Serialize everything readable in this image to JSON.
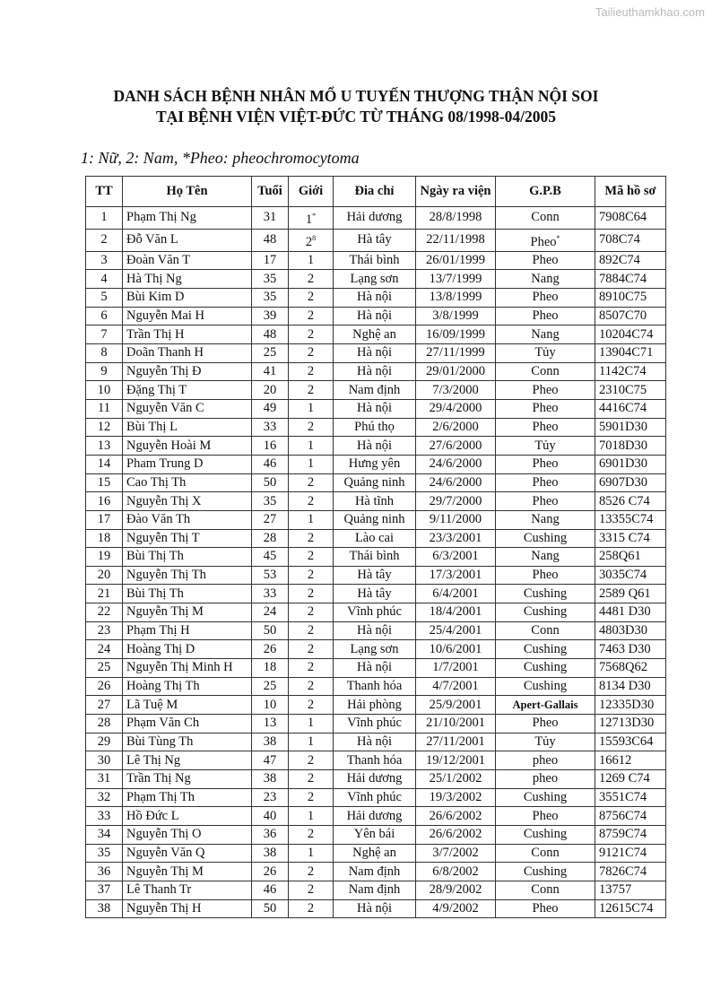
{
  "watermark": "Tailieuthamkhao.com",
  "title_line1": "DANH SÁCH BỆNH NHÂN MỔ U TUYẾN THƯỢNG THẬN NỘI SOI",
  "title_line2": "TẠI BỆNH VIỆN VIỆT-ĐỨC TỪ THÁNG 08/1998-04/2005",
  "legend": "1: Nữ, 2: Nam, *Pheo: pheochromocytoma",
  "headers": [
    "TT",
    "Họ Tên",
    "Tuổi",
    "Giới",
    "Đia chỉ",
    "Ngày ra viện",
    "G.P.B",
    "Mã hồ sơ"
  ],
  "rows": [
    [
      "1",
      "Phạm Thị Ng",
      "31",
      "1",
      "Hải dương",
      "28/8/1998",
      "Conn",
      "7908C64"
    ],
    [
      "2",
      "Đỗ Văn L",
      "48",
      "2",
      "Hà tây",
      "22/11/1998",
      "Pheo",
      "708C74"
    ],
    [
      "3",
      "Đoàn Văn T",
      "17",
      "1",
      "Thái bình",
      "26/01/1999",
      "Pheo",
      "892C74"
    ],
    [
      "4",
      "Hà Thị Ng",
      "35",
      "2",
      "Lạng sơn",
      "13/7/1999",
      "Nang",
      "7884C74"
    ],
    [
      "5",
      "Bùi Kim D",
      "35",
      "2",
      "Hà nội",
      "13/8/1999",
      "Pheo",
      "8910C75"
    ],
    [
      "6",
      "Nguyễn Mai H",
      "39",
      "2",
      "Hà nội",
      "3/8/1999",
      "Pheo",
      "8507C70"
    ],
    [
      "7",
      "Trần Thị H",
      "48",
      "2",
      "Nghệ an",
      "16/09/1999",
      "Nang",
      "10204C74"
    ],
    [
      "8",
      "Doãn Thanh H",
      "25",
      "2",
      "Hà nội",
      "27/11/1999",
      "Tủy",
      "13904C71"
    ],
    [
      "9",
      "Nguyễn Thị Đ",
      "41",
      "2",
      "Hà nội",
      "29/01/2000",
      "Conn",
      "1142C74"
    ],
    [
      "10",
      "Đặng Thị T",
      "20",
      "2",
      "Nam định",
      "7/3/2000",
      "Pheo",
      "2310C75"
    ],
    [
      "11",
      "Nguyễn Văn C",
      "49",
      "1",
      "Hà nội",
      "29/4/2000",
      "Pheo",
      "4416C74"
    ],
    [
      "12",
      "Bùi Thị L",
      "33",
      "2",
      "Phú thọ",
      "2/6/2000",
      "Pheo",
      "5901D30"
    ],
    [
      "13",
      "Nguyễn Hoài M",
      "16",
      "1",
      "Hà nội",
      "27/6/2000",
      "Tủy",
      "7018D30"
    ],
    [
      "14",
      "Pham Trung D",
      "46",
      "1",
      "Hưng yên",
      "24/6/2000",
      "Pheo",
      "6901D30"
    ],
    [
      "15",
      "Cao Thị Th",
      "50",
      "2",
      "Quảng ninh",
      "24/6/2000",
      "Pheo",
      "6907D30"
    ],
    [
      "16",
      "Nguyễn Thị  X",
      "35",
      "2",
      "Hà tĩnh",
      "29/7/2000",
      "Pheo",
      "8526 C74"
    ],
    [
      "17",
      "Đào Văn Th",
      "27",
      "1",
      "Quảng ninh",
      "9/11/2000",
      "Nang",
      "13355C74"
    ],
    [
      "18",
      "Nguyễn Thị T",
      "28",
      "2",
      "Lào cai",
      "23/3/2001",
      "Cushing",
      "3315 C74"
    ],
    [
      "19",
      "Bùi Thị Th",
      "45",
      "2",
      "Thái bình",
      "6/3/2001",
      "Nang",
      "258Q61"
    ],
    [
      "20",
      "Nguyễn Thị Th",
      "53",
      "2",
      "Hà tây",
      "17/3/2001",
      "Pheo",
      "3035C74"
    ],
    [
      "21",
      "Bùi Thị Th",
      "33",
      "2",
      "Hà tây",
      "6/4/2001",
      "Cushing",
      "2589 Q61"
    ],
    [
      "22",
      "Nguyễn Thị M",
      "24",
      "2",
      "Vĩnh phúc",
      "18/4/2001",
      "Cushing",
      "4481 D30"
    ],
    [
      "23",
      "Phạm Thị H",
      "50",
      "2",
      "Hà nội",
      "25/4/2001",
      "Conn",
      "4803D30"
    ],
    [
      "24",
      "Hoàng Thị D",
      "26",
      "2",
      "Lạng sơn",
      "10/6/2001",
      "Cushing",
      "7463 D30"
    ],
    [
      "25",
      "Nguyễn Thị Minh H",
      "18",
      "2",
      "Hà nội",
      "1/7/2001",
      "Cushing",
      "7568Q62"
    ],
    [
      "26",
      "Hoàng Thị Th",
      "25",
      "2",
      "Thanh hóa",
      "4/7/2001",
      "Cushing",
      "8134 D30"
    ],
    [
      "27",
      "Lã Tuệ M",
      "10",
      "2",
      "Hải phòng",
      "25/9/2001",
      "Apert-Gallais",
      "12335D30"
    ],
    [
      "28",
      "Phạm Văn Ch",
      "13",
      "1",
      "Vĩnh phúc",
      "21/10/2001",
      "Pheo",
      "12713D30"
    ],
    [
      "29",
      "Bùi Tùng Th",
      "38",
      "1",
      "Hà nội",
      "27/11/2001",
      "Tủy",
      "15593C64"
    ],
    [
      "30",
      "Lê Thị Ng",
      "47",
      "2",
      "Thanh hóa",
      "19/12/2001",
      "pheo",
      "16612"
    ],
    [
      "31",
      "Trần Thị Ng",
      "38",
      "2",
      "Hải dương",
      "25/1/2002",
      "pheo",
      "1269 C74"
    ],
    [
      "32",
      "Phạm Thị Th",
      "23",
      "2",
      "Vĩnh phúc",
      "19/3/2002",
      "Cushing",
      "3551C74"
    ],
    [
      "33",
      "Hồ Đức L",
      "40",
      "1",
      "Hải dương",
      "26/6/2002",
      "Pheo",
      "8756C74"
    ],
    [
      "34",
      "Nguyễn Thị O",
      "36",
      "2",
      "Yên bái",
      "26/6/2002",
      "Cushing",
      "8759C74"
    ],
    [
      "35",
      "Nguyễn Văn Q",
      "38",
      "1",
      "Nghệ an",
      "3/7/2002",
      "Conn",
      "9121C74"
    ],
    [
      "36",
      "Nguyễn Thị M",
      "26",
      "2",
      "Nam định",
      "6/8/2002",
      "Cushing",
      "7826C74"
    ],
    [
      "37",
      "Lê Thanh Tr",
      "46",
      "2",
      "Nam định",
      "28/9/2002",
      "Conn",
      "13757"
    ],
    [
      "38",
      "Nguyễn Thị H",
      "50",
      "2",
      "Hà nội",
      "4/9/2002",
      "Pheo",
      "12615C74"
    ]
  ],
  "superscripts": {
    "0": {
      "3": "*"
    },
    "1": {
      "3": "8",
      "6": "*"
    }
  }
}
